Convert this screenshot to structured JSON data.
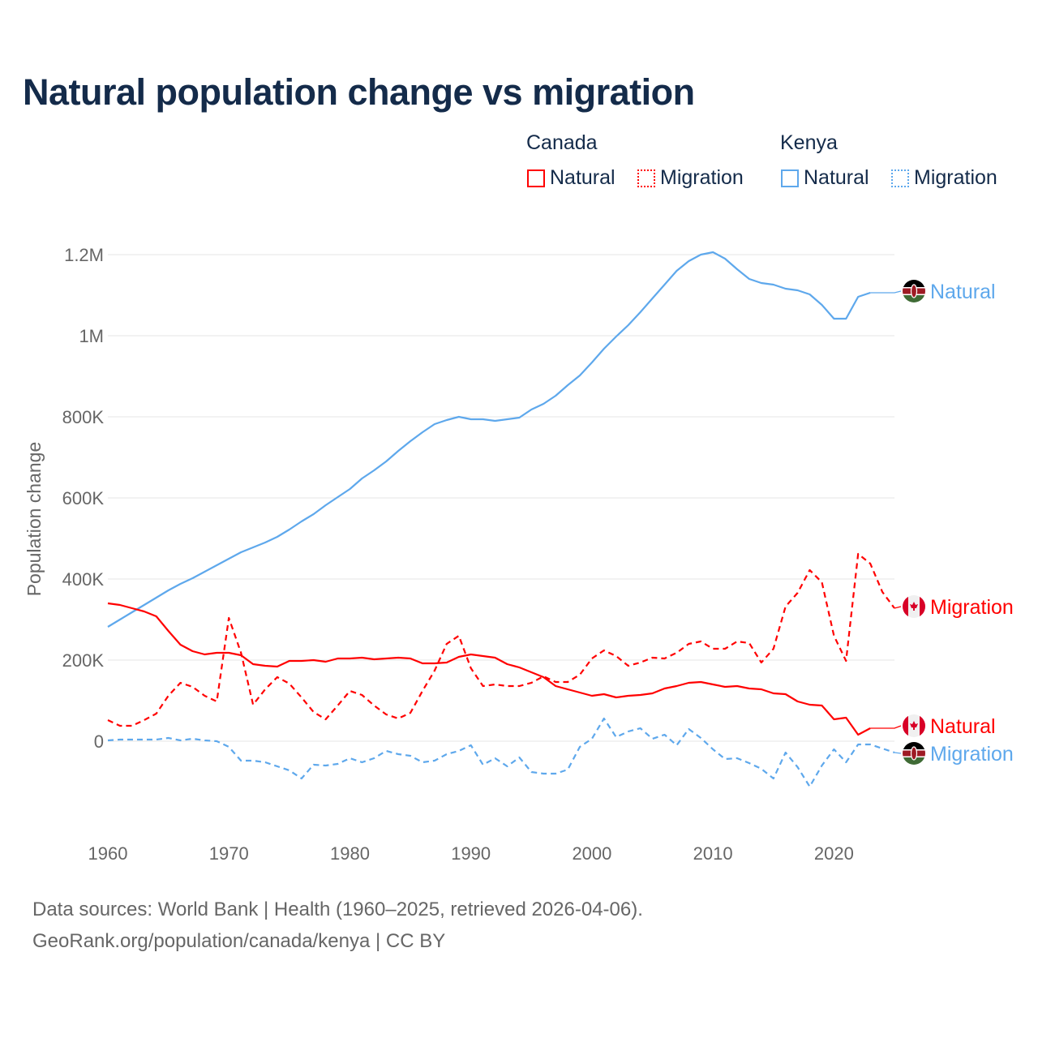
{
  "title": "Natural population change vs migration",
  "legend": {
    "groups": [
      {
        "name": "Canada",
        "items": [
          {
            "label": "Natural",
            "style": "solid"
          },
          {
            "label": "Migration",
            "style": "dotted"
          }
        ],
        "color": "#ff0000"
      },
      {
        "name": "Kenya",
        "items": [
          {
            "label": "Natural",
            "style": "solid"
          },
          {
            "label": "Migration",
            "style": "dotted"
          }
        ],
        "color": "#5ea8ec"
      }
    ]
  },
  "footer": {
    "line1": "Data sources: World Bank | Health (1960–2025, retrieved 2026-04-06).",
    "line2": "GeoRank.org/population/canada/kenya | CC BY"
  },
  "chart_data": {
    "type": "line",
    "title": "Natural population change vs migration",
    "xlabel": "",
    "ylabel": "Population change",
    "units": "thousands",
    "xlim": [
      1960,
      2025
    ],
    "ylim": [
      -172,
      1220
    ],
    "x_ticks": [
      1960,
      1970,
      1980,
      1990,
      2000,
      2010,
      2020
    ],
    "x_tick_labels": [
      "1960",
      "1970",
      "1980",
      "1990",
      "2000",
      "2010",
      "2020"
    ],
    "y_ticks": [
      0,
      200,
      400,
      600,
      800,
      1000,
      1200
    ],
    "y_tick_labels": [
      "0",
      "200K",
      "400K",
      "600K",
      "800K",
      "1M",
      "1.2M"
    ],
    "grid": true,
    "legend_placement": "top-right",
    "series": [
      {
        "name": "Kenya Natural",
        "end_label": "Natural",
        "country": "Kenya",
        "color": "#5ea8ec",
        "dash": false,
        "start": 1960,
        "values": [
          282,
          300,
          318,
          336,
          354,
          372,
          388,
          402,
          418,
          434,
          450,
          466,
          478,
          490,
          504,
          522,
          542,
          560,
          582,
          602,
          622,
          648,
          668,
          690,
          716,
          740,
          762,
          782,
          792,
          800,
          794,
          794,
          790,
          794,
          798,
          818,
          832,
          852,
          878,
          902,
          934,
          968,
          998,
          1026,
          1058,
          1092,
          1126,
          1160,
          1184,
          1200,
          1206,
          1190,
          1164,
          1140,
          1130,
          1126,
          1116,
          1112,
          1102,
          1076,
          1042,
          1042,
          1096,
          1106
        ]
      },
      {
        "name": "Canada Migration",
        "end_label": "Migration",
        "country": "Canada",
        "color": "#ff0000",
        "dash": true,
        "start": 1960,
        "values": [
          52,
          38,
          38,
          52,
          68,
          112,
          144,
          134,
          112,
          98,
          304,
          218,
          90,
          128,
          158,
          142,
          108,
          72,
          54,
          88,
          124,
          114,
          88,
          66,
          56,
          70,
          124,
          174,
          240,
          260,
          180,
          136,
          140,
          136,
          136,
          144,
          160,
          146,
          146,
          164,
          204,
          224,
          210,
          186,
          194,
          206,
          204,
          218,
          240,
          246,
          228,
          228,
          246,
          242,
          194,
          228,
          332,
          366,
          422,
          392,
          260,
          198,
          462,
          438,
          368,
          328
        ]
      },
      {
        "name": "Canada Natural",
        "end_label": "Natural",
        "country": "Canada",
        "color": "#ff0000",
        "dash": false,
        "start": 1960,
        "values": [
          340,
          336,
          328,
          320,
          308,
          272,
          238,
          222,
          214,
          218,
          218,
          212,
          190,
          186,
          184,
          198,
          198,
          200,
          196,
          204,
          204,
          206,
          202,
          204,
          206,
          204,
          192,
          192,
          194,
          208,
          214,
          210,
          206,
          190,
          182,
          170,
          158,
          136,
          128,
          120,
          112,
          116,
          108,
          112,
          114,
          118,
          130,
          136,
          144,
          146,
          140,
          134,
          136,
          130,
          128,
          118,
          116,
          98,
          90,
          88,
          54,
          58,
          16,
          32
        ]
      },
      {
        "name": "Kenya Migration",
        "end_label": "Migration",
        "country": "Kenya",
        "color": "#5ea8ec",
        "dash": true,
        "start": 1960,
        "values": [
          2,
          4,
          4,
          4,
          4,
          8,
          2,
          6,
          2,
          0,
          -14,
          -48,
          -48,
          -52,
          -62,
          -72,
          -92,
          -58,
          -60,
          -56,
          -42,
          -52,
          -42,
          -24,
          -32,
          -36,
          -52,
          -48,
          -32,
          -24,
          -10,
          -58,
          -42,
          -62,
          -40,
          -76,
          -80,
          -80,
          -70,
          -14,
          6,
          56,
          10,
          24,
          32,
          6,
          16,
          -10,
          30,
          8,
          -20,
          -44,
          -42,
          -54,
          -68,
          -92,
          -28,
          -64,
          -112,
          -60,
          -20,
          -52,
          -8,
          -8,
          -18,
          -28
        ]
      }
    ]
  }
}
